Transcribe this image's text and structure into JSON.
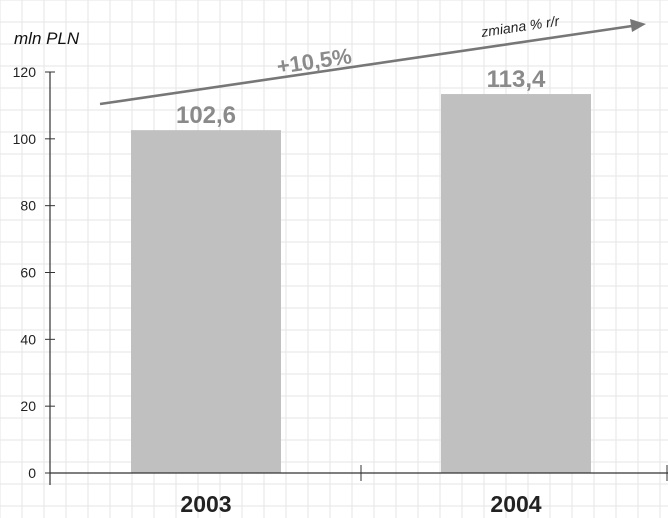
{
  "chart_data": {
    "type": "bar",
    "title": "",
    "xlabel": "",
    "ylabel": "mln PLN",
    "categories": [
      "2003",
      "2004"
    ],
    "values": [
      102.6,
      113.4
    ],
    "data_labels": [
      "102,6",
      "113,4"
    ],
    "ylim": [
      0,
      120
    ],
    "yticks": [
      "0",
      "20",
      "40",
      "60",
      "80",
      "100",
      "120"
    ],
    "grid": true,
    "bar_color": "#c0c0c0",
    "annotations": {
      "growth": "+10,5%",
      "arrow_caption": "zmiana % r/r"
    }
  }
}
